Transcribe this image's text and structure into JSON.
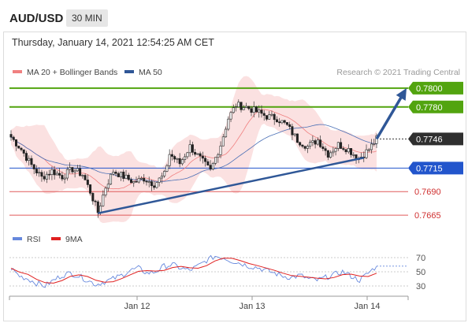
{
  "header": {
    "pair": "AUD/USD",
    "timeframe": "30 MIN",
    "timestamp": "Thursday, January 14, 2021 12:54:25 AM CET"
  },
  "legend": {
    "ma20_label": "MA 20 + Bollinger Bands",
    "ma50_label": "MA 50",
    "credit": "Research © 2021 Trading Central",
    "rsi_label": "RSI",
    "ma9_label": "9MA"
  },
  "colors": {
    "green": "#52a40f",
    "blue_line": "#2255cc",
    "red_line": "#e05a5a",
    "trend": "#2f5797",
    "band_fill": "#fadada",
    "ma20": "#f08080",
    "ma50": "#4a6fb5",
    "rsi": "#6688dd",
    "rsi_ma": "#e02020",
    "current_box": "#2f2f2f"
  },
  "chart_data": {
    "type": "candlestick",
    "x_tick_labels": [
      "Jan 12",
      "Jan 13",
      "Jan 14"
    ],
    "y_range": [
      0.7655,
      0.781
    ],
    "current_price": "0.7746",
    "levels": [
      {
        "label": "0.7800",
        "value": 0.78,
        "kind": "target"
      },
      {
        "label": "0.7780",
        "value": 0.778,
        "kind": "target"
      },
      {
        "label": "0.7715",
        "value": 0.7715,
        "kind": "pivot"
      },
      {
        "label": "0.7690",
        "value": 0.769,
        "kind": "support"
      },
      {
        "label": "0.7665",
        "value": 0.7665,
        "kind": "support"
      }
    ],
    "close_path": [
      [
        0,
        0.7748
      ],
      [
        4,
        0.7735
      ],
      [
        8,
        0.7718
      ],
      [
        12,
        0.7705
      ],
      [
        16,
        0.7712
      ],
      [
        20,
        0.7706
      ],
      [
        24,
        0.7714
      ],
      [
        28,
        0.7708
      ],
      [
        31,
        0.769
      ],
      [
        34,
        0.7668
      ],
      [
        37,
        0.7695
      ],
      [
        40,
        0.7712
      ],
      [
        44,
        0.7706
      ],
      [
        48,
        0.77
      ],
      [
        52,
        0.7704
      ],
      [
        56,
        0.7698
      ],
      [
        60,
        0.7708
      ],
      [
        62,
        0.773
      ],
      [
        66,
        0.772
      ],
      [
        70,
        0.7738
      ],
      [
        74,
        0.7725
      ],
      [
        78,
        0.7712
      ],
      [
        82,
        0.774
      ],
      [
        85,
        0.7768
      ],
      [
        88,
        0.7782
      ],
      [
        92,
        0.778
      ],
      [
        96,
        0.7775
      ],
      [
        100,
        0.777
      ],
      [
        104,
        0.7768
      ],
      [
        108,
        0.776
      ],
      [
        112,
        0.7745
      ],
      [
        116,
        0.7738
      ],
      [
        120,
        0.7745
      ],
      [
        124,
        0.773
      ],
      [
        128,
        0.774
      ],
      [
        132,
        0.7735
      ],
      [
        136,
        0.7725
      ],
      [
        140,
        0.7735
      ],
      [
        143,
        0.7746
      ]
    ],
    "trendline": [
      [
        34,
        0.7667
      ],
      [
        138,
        0.7726
      ]
    ],
    "arrow": [
      [
        143,
        0.7746
      ],
      [
        160,
        0.78
      ]
    ],
    "rsi": {
      "levels": [
        70,
        50,
        30
      ],
      "values": [
        55,
        44,
        40,
        34,
        30,
        38,
        45,
        48,
        44,
        38,
        32,
        36,
        40,
        45,
        52,
        55,
        48,
        50,
        58,
        60,
        55,
        52,
        58,
        66,
        72,
        70,
        65,
        62,
        58,
        56,
        52,
        48,
        44,
        42,
        45,
        40,
        38,
        42,
        46,
        50,
        44,
        38,
        48,
        58
      ]
    }
  }
}
